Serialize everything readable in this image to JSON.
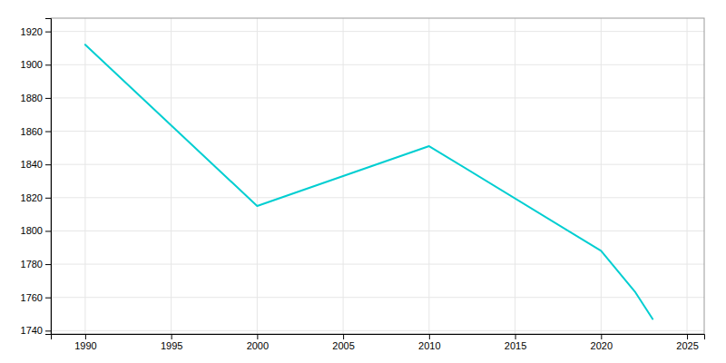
{
  "chart_data": {
    "type": "line",
    "x": [
      1990,
      2000,
      2010,
      2020,
      2022,
      2023
    ],
    "values": [
      1912,
      1815,
      1851,
      1788,
      1763,
      1747
    ],
    "color": "#00CED1",
    "xlim": [
      1988,
      2026
    ],
    "ylim": [
      1738,
      1928
    ],
    "xticks": [
      1990,
      1995,
      2000,
      2005,
      2010,
      2015,
      2020,
      2025
    ],
    "yticks": [
      1740,
      1760,
      1780,
      1800,
      1820,
      1840,
      1860,
      1880,
      1900,
      1920
    ],
    "grid": true
  }
}
